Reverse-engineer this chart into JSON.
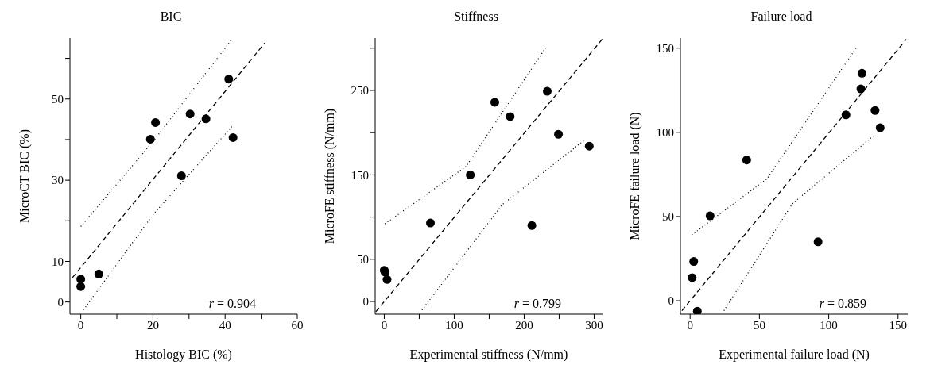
{
  "chart_data": [
    {
      "type": "scatter",
      "title": "BIC",
      "xlabel": "Histology BIC (%)",
      "ylabel": "MicroCT BIC (%)",
      "xlim": [
        -3,
        60
      ],
      "ylim": [
        -3,
        65
      ],
      "xticks": [
        0,
        {
          "value": 10,
          "label": null
        },
        20,
        {
          "value": 30,
          "label": null
        },
        40,
        {
          "value": 50,
          "label": null
        },
        60
      ],
      "yticks": [
        0,
        10,
        {
          "value": 20,
          "label": null
        },
        30,
        {
          "value": 40,
          "label": null
        },
        50,
        {
          "value": 60,
          "label": null
        }
      ],
      "annotations": [
        "r = 0.904"
      ],
      "series": [
        {
          "marker": "circle",
          "color": "#000000",
          "x": [
            0,
            0,
            5,
            19.3,
            20.7,
            27.9,
            30.3,
            34.7,
            41.0,
            42.2
          ],
          "values": [
            5.6,
            3.8,
            6.9,
            40.1,
            44.2,
            31.1,
            46.3,
            45.1,
            54.9,
            40.5
          ]
        },
        {
          "type": "line",
          "line_style": "dashed",
          "color": "#000000",
          "x": [
            -2.3,
            51
          ],
          "values": [
            6.0,
            63.8
          ]
        },
        {
          "type": "line",
          "line_style": "dotted",
          "color": "#000000",
          "x": [
            0,
            20,
            41.9
          ],
          "values": [
            18.6,
            39.5,
            64.7
          ]
        },
        {
          "type": "line",
          "line_style": "dotted",
          "color": "#000000",
          "x": [
            0.8,
            20,
            41.9
          ],
          "values": [
            -1.9,
            21.5,
            43.2
          ]
        }
      ]
    },
    {
      "type": "scatter",
      "title": "Stiffness",
      "xlabel": "Experimental stiffness (N/mm)",
      "ylabel": "MicroFE stiffness (N/mm)",
      "xlim": [
        -13,
        312
      ],
      "ylim": [
        -15,
        312
      ],
      "xticks": [
        0,
        {
          "value": 50,
          "label": null
        },
        100,
        {
          "value": 150,
          "label": null
        },
        200,
        {
          "value": 250,
          "label": null
        },
        300
      ],
      "yticks": [
        0,
        50,
        {
          "value": 100,
          "label": null
        },
        150,
        {
          "value": 200,
          "label": null
        },
        250,
        {
          "value": 300,
          "label": null
        }
      ],
      "annotations": [
        "r = 0.799"
      ],
      "series": [
        {
          "marker": "circle",
          "color": "#000000",
          "x": [
            0,
            1,
            4,
            66,
            123,
            158,
            180,
            211,
            233,
            249,
            293
          ],
          "values": [
            37,
            35,
            26,
            93,
            150,
            236,
            219,
            90,
            249,
            198,
            184
          ]
        },
        {
          "type": "line",
          "line_style": "dashed",
          "color": "#000000",
          "x": [
            -12,
            312
          ],
          "values": [
            -12,
            311
          ]
        },
        {
          "type": "line",
          "line_style": "dotted",
          "color": "#000000",
          "x": [
            1,
            117,
            232
          ],
          "values": [
            92,
            160,
            302
          ]
        },
        {
          "type": "line",
          "line_style": "dotted",
          "color": "#000000",
          "x": [
            54,
            169,
            286
          ],
          "values": [
            -10,
            115,
            191
          ]
        }
      ]
    },
    {
      "type": "scatter",
      "title": "Failure load",
      "xlabel": "Experimental failure load (N)",
      "ylabel": "MicroFE failure load (N)",
      "xlim": [
        -7,
        157
      ],
      "ylim": [
        -8,
        156
      ],
      "xticks": [
        0,
        50,
        100,
        150
      ],
      "yticks": [
        0,
        50,
        100,
        150
      ],
      "annotations": [
        "r = 0.859"
      ],
      "series": [
        {
          "marker": "circle",
          "color": "#000000",
          "x": [
            1.5,
            2.6,
            5.2,
            14.4,
            40.8,
            92.3,
            112.4,
            123.2,
            124,
            133.4,
            137.1
          ],
          "values": [
            13.7,
            23.3,
            -6.2,
            50.4,
            83.6,
            35,
            110.4,
            125.8,
            135.1,
            113,
            102.7
          ]
        },
        {
          "type": "line",
          "line_style": "dashed",
          "color": "#000000",
          "x": [
            -5.9,
            155.9
          ],
          "values": [
            -5.9,
            155.2
          ]
        },
        {
          "type": "line",
          "line_style": "dotted",
          "color": "#000000",
          "x": [
            1.3,
            55.4,
            120.5
          ],
          "values": [
            39.2,
            72.4,
            151
          ]
        },
        {
          "type": "line",
          "line_style": "dotted",
          "color": "#000000",
          "x": [
            24.4,
            73.8,
            132.8
          ],
          "values": [
            -5.9,
            57.6,
            98.3
          ]
        }
      ]
    }
  ]
}
